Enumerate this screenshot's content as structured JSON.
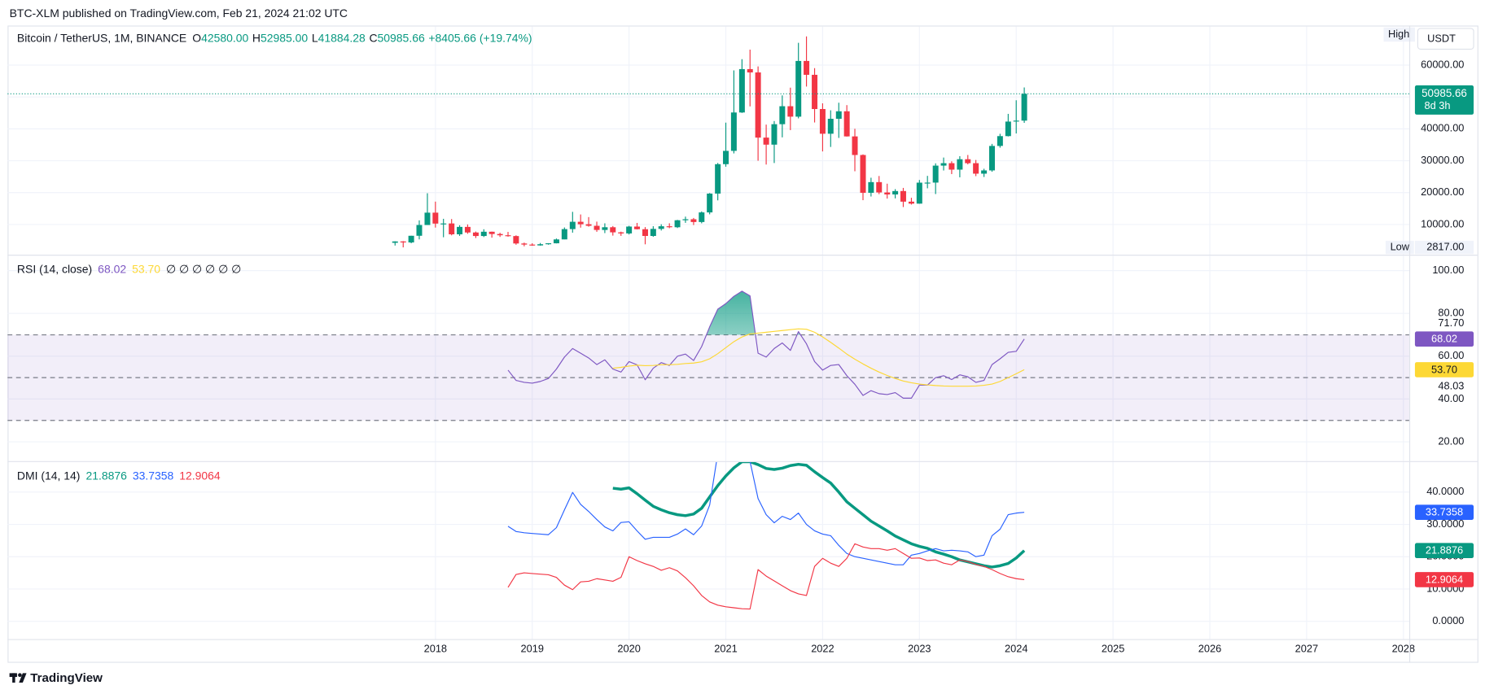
{
  "header": {
    "text": "BTC-XLM published on TradingView.com, Feb 21, 2024 21:02 UTC"
  },
  "footer": {
    "brand": "TradingView"
  },
  "chart_data": [
    {
      "type": "candlestick",
      "title": "Bitcoin / TetherUS, 1M, BINANCE",
      "ohlc_legend": [
        {
          "label": "O",
          "value": "42580.00"
        },
        {
          "label": "H",
          "value": "52985.00"
        },
        {
          "label": "L",
          "value": "41884.28"
        },
        {
          "label": "C",
          "value": "50985.66"
        }
      ],
      "change": "+8405.66 (+19.74%)",
      "currency": "USDT",
      "high_label": "High",
      "low_marker": {
        "label": "Low",
        "value": 2817,
        "value_label": "2817.00"
      },
      "last_price": {
        "value": 50985.66,
        "label": "50985.66",
        "countdown": "8d 3h"
      },
      "up_color": "#089981",
      "down_color": "#f23645",
      "xlim": [
        2013.58,
        2028.06
      ],
      "ylim": [
        530,
        72100
      ],
      "yticks": [
        {
          "value": 10000,
          "label": "10000.00"
        },
        {
          "value": 20000,
          "label": "20000.00"
        },
        {
          "value": 30000,
          "label": "30000.00"
        },
        {
          "value": 40000,
          "label": "40000.00"
        },
        {
          "value": 50000,
          "label": "50000.00"
        },
        {
          "value": 60000,
          "label": "60000.00"
        }
      ],
      "x": [
        2017.583,
        2017.667,
        2017.75,
        2017.833,
        2017.917,
        2018,
        2018.083,
        2018.167,
        2018.25,
        2018.333,
        2018.417,
        2018.5,
        2018.583,
        2018.667,
        2018.75,
        2018.833,
        2018.917,
        2019,
        2019.083,
        2019.167,
        2019.25,
        2019.333,
        2019.417,
        2019.5,
        2019.583,
        2019.667,
        2019.75,
        2019.833,
        2019.917,
        2020,
        2020.083,
        2020.167,
        2020.25,
        2020.333,
        2020.417,
        2020.5,
        2020.583,
        2020.667,
        2020.75,
        2020.833,
        2020.917,
        2021,
        2021.083,
        2021.167,
        2021.25,
        2021.333,
        2021.417,
        2021.5,
        2021.583,
        2021.667,
        2021.75,
        2021.833,
        2021.917,
        2022,
        2022.083,
        2022.167,
        2022.25,
        2022.333,
        2022.417,
        2022.5,
        2022.583,
        2022.667,
        2022.75,
        2022.833,
        2022.917,
        2023,
        2023.083,
        2023.167,
        2023.25,
        2023.333,
        2023.417,
        2023.5,
        2023.583,
        2023.667,
        2023.75,
        2023.833,
        2023.917,
        2024,
        2024.083
      ],
      "open": [
        4261.48,
        4689.89,
        4378.51,
        6463,
        9837,
        13715.65,
        10285.1,
        10326.76,
        6923.91,
        9246.01,
        7494.16,
        6391.08,
        7730.93,
        7011.21,
        6626.57,
        6371.93,
        4041.32,
        3701.23,
        3434.15,
        3813.69,
        4103.25,
        5320.81,
        8555,
        10854.1,
        10085,
        9588.74,
        8289.34,
        9140.86,
        7540.63,
        7195.23,
        9352.89,
        8523.61,
        6410.44,
        8620,
        9448.27,
        9138.08,
        11335.46,
        11649.51,
        10776.59,
        13791,
        19695.87,
        28923.63,
        33092.97,
        45134.11,
        58739.46,
        57697.25,
        37253.82,
        35045,
        41461.84,
        47100.89,
        43820.01,
        61299.81,
        56950.56,
        46216.93,
        38466.9,
        43160,
        45510.34,
        37630.8,
        31801.05,
        19942.21,
        23293.32,
        20050.02,
        19422.61,
        20490.74,
        17165.53,
        16541.77,
        23125.13,
        23141.57,
        28465.36,
        29233.21,
        27210.36,
        30472,
        29232.25,
        25940.78,
        26962.56,
        34639.38,
        37723.96,
        42283.58,
        42580
      ],
      "high": [
        4745.42,
        4789,
        6470,
        11300.03,
        19798.68,
        17176.24,
        11786.01,
        11710,
        9759.82,
        10020,
        7786.69,
        8506.99,
        7769.04,
        7410,
        7680,
        6600,
        4318.26,
        4110,
        4198,
        4140,
        5600,
        9074.26,
        13970,
        13147.08,
        12325,
        10905.87,
        10370,
        9508.98,
        7750,
        9578,
        10500,
        9188.23,
        9460,
        10067,
        10380,
        11444,
        12468,
        12050.85,
        14100,
        19863.16,
        29300,
        41950,
        58352.8,
        61844,
        64854,
        59600,
        41330,
        42448,
        50500,
        52920,
        67000,
        69000,
        59053.55,
        47990,
        45821,
        48189.84,
        47444.11,
        40023.77,
        31986.1,
        24668,
        25211.32,
        22799,
        21085,
        21480.65,
        18387.95,
        23960.54,
        25250,
        29184.68,
        31000,
        29820.5,
        31431.94,
        31804.2,
        30244,
        27483.57,
        35280,
        38450,
        44700,
        48969.48,
        52985
      ],
      "low": [
        3400,
        2817,
        4110,
        5325.01,
        10400,
        9035,
        6000.01,
        6600.1,
        6430,
        7090,
        5750,
        6070,
        5880,
        6100,
        6180,
        3652.66,
        3156.26,
        3349.92,
        3373.1,
        3670.69,
        4067,
        5350.91,
        7440,
        9010,
        9320,
        7710,
        7300,
        6515,
        6435,
        6871.04,
        8445,
        3782.13,
        6150.11,
        8117,
        8833,
        8893.03,
        10518.5,
        9825,
        10374,
        13195,
        17572.33,
        28130,
        32296.16,
        45000,
        47044.01,
        30000,
        28805,
        29278,
        37332.7,
        39600,
        43283.03,
        53256.64,
        42000.3,
        32917.17,
        34322.28,
        37155,
        37578.2,
        26700,
        17622,
        18781.34,
        19520,
        18125.98,
        18190,
        15476,
        16256.3,
        16499.01,
        21351.07,
        19549.09,
        26942.82,
        25811.46,
        24800,
        28861.9,
        25166,
        24901,
        26538.66,
        34097.39,
        37615.86,
        38555,
        41884.28
      ],
      "close": [
        4689.89,
        4378.48,
        6463,
        9838.96,
        13716.36,
        10285.1,
        10326.76,
        6923.91,
        9246.01,
        7494.16,
        6391.08,
        7730.93,
        7011.21,
        6626.57,
        6371.93,
        4041.32,
        3702.9,
        3434.1,
        3813.69,
        4103.95,
        5320.81,
        8555,
        10854.1,
        10080.53,
        9588.74,
        8289.34,
        9140.85,
        7540.63,
        7195.23,
        9352.89,
        8523.61,
        6410.44,
        8620,
        9448.27,
        9138.55,
        11335.46,
        11649.51,
        10776.59,
        13791,
        19695.87,
        28923.63,
        33092.98,
        45135.66,
        58740.55,
        57694.27,
        37253.81,
        35045,
        41461.83,
        47100.89,
        43824.43,
        61299.8,
        56950.56,
        46216.93,
        38466.9,
        43160,
        45510.34,
        37630.8,
        31801.04,
        19942.21,
        23293.32,
        20050.02,
        19422.61,
        20490.74,
        17163.64,
        16542.4,
        23125.13,
        23141.57,
        28465.36,
        29233.21,
        27210.35,
        30472,
        29232.25,
        25940.77,
        26962.56,
        34639.77,
        37723.96,
        42283.58,
        42580,
        50985.66
      ]
    },
    {
      "type": "line",
      "title": "RSI (14, close)",
      "extra": "∅ ∅ ∅ ∅ ∅ ∅",
      "xlim": [
        2013.58,
        2028.06
      ],
      "ylim": [
        11,
        107
      ],
      "yticks": [
        {
          "value": 20,
          "label": "20.00"
        },
        {
          "value": 40,
          "label": "40.00"
        },
        {
          "value": 60,
          "label": "60.00"
        },
        {
          "value": 80,
          "label": "80.00"
        },
        {
          "value": 100,
          "label": "100.00"
        }
      ],
      "bands": [
        70,
        50,
        30
      ],
      "band_color": "#7e57c2",
      "overbought_color": "#089981",
      "axis_labels": [
        {
          "value": 71.7,
          "label": "71.70"
        },
        {
          "value": 48.03,
          "label": "48.03"
        }
      ],
      "x": [
        2018.75,
        2018.833,
        2018.917,
        2019,
        2019.083,
        2019.167,
        2019.25,
        2019.333,
        2019.417,
        2019.5,
        2019.583,
        2019.667,
        2019.75,
        2019.833,
        2019.917,
        2020,
        2020.083,
        2020.167,
        2020.25,
        2020.333,
        2020.417,
        2020.5,
        2020.583,
        2020.667,
        2020.75,
        2020.833,
        2020.917,
        2021,
        2021.083,
        2021.167,
        2021.25,
        2021.333,
        2021.417,
        2021.5,
        2021.583,
        2021.667,
        2021.75,
        2021.833,
        2021.917,
        2022,
        2022.083,
        2022.167,
        2022.25,
        2022.333,
        2022.417,
        2022.5,
        2022.583,
        2022.667,
        2022.75,
        2022.833,
        2022.917,
        2023,
        2023.083,
        2023.167,
        2023.25,
        2023.333,
        2023.417,
        2023.5,
        2023.583,
        2023.667,
        2023.75,
        2023.833,
        2023.917,
        2024,
        2024.083
      ],
      "series": [
        {
          "color": "#7e57c2",
          "width": 1,
          "value_label": "68.02",
          "badge_text": "#ffffff",
          "values": [
            53.5,
            48.7,
            47.8,
            47.4,
            48.2,
            49.6,
            54,
            59.6,
            63.6,
            61.4,
            59.2,
            56.1,
            58.3,
            54,
            52.6,
            57.5,
            56,
            49,
            54.4,
            57,
            55.7,
            60,
            61,
            58,
            64.5,
            73.7,
            82,
            84.6,
            88,
            90.4,
            88.2,
            61.4,
            59.6,
            63.6,
            66.2,
            62.7,
            71.5,
            65.8,
            57.5,
            53.5,
            55.7,
            56.1,
            50.9,
            46.9,
            41.7,
            43.9,
            42.5,
            42.1,
            43,
            40.4,
            40.4,
            46.5,
            46.5,
            50,
            50.9,
            49.1,
            51.3,
            50.4,
            47.8,
            48.7,
            56.1,
            58.8,
            61.8,
            62.3,
            68.02
          ]
        },
        {
          "color": "#fdd835",
          "width": 1,
          "value_label": "53.70",
          "badge_text": "#131722",
          "values": [
            null,
            null,
            null,
            null,
            null,
            null,
            null,
            null,
            null,
            null,
            null,
            null,
            null,
            54.4,
            54.8,
            55.4,
            55.8,
            55.6,
            55.7,
            56,
            56,
            56.2,
            56.6,
            56.8,
            57.4,
            58.8,
            61.2,
            64,
            66.8,
            69,
            70.4,
            70.8,
            71.2,
            71.6,
            72,
            72.4,
            72.8,
            72.6,
            71.2,
            69,
            66.5,
            63.8,
            61,
            58.6,
            56.4,
            54.4,
            52.6,
            51,
            49.6,
            48.4,
            47.6,
            47,
            46.6,
            46.3,
            46.1,
            46,
            46,
            46,
            46.1,
            46.4,
            47,
            48.2,
            50,
            51.8,
            53.7
          ]
        }
      ]
    },
    {
      "type": "line",
      "title": "DMI (14, 14)",
      "xlim": [
        2013.58,
        2028.06
      ],
      "xticks": [
        2018,
        2019,
        2020,
        2021,
        2022,
        2023,
        2024,
        2025,
        2026,
        2027,
        2028
      ],
      "ylim": [
        -5.5,
        49.3
      ],
      "yticks": [
        {
          "value": 0,
          "label": "0.0000"
        },
        {
          "value": 10,
          "label": "10.0000"
        },
        {
          "value": 20,
          "label": "20.0000"
        },
        {
          "value": 30,
          "label": "30.0000"
        },
        {
          "value": 40,
          "label": "40.0000"
        }
      ],
      "x": [
        2018.75,
        2018.833,
        2018.917,
        2019,
        2019.083,
        2019.167,
        2019.25,
        2019.333,
        2019.417,
        2019.5,
        2019.583,
        2019.667,
        2019.75,
        2019.833,
        2019.917,
        2020,
        2020.083,
        2020.167,
        2020.25,
        2020.333,
        2020.417,
        2020.5,
        2020.583,
        2020.667,
        2020.75,
        2020.833,
        2020.917,
        2021,
        2021.083,
        2021.167,
        2021.25,
        2021.333,
        2021.417,
        2021.5,
        2021.583,
        2021.667,
        2021.75,
        2021.833,
        2021.917,
        2022,
        2022.083,
        2022.167,
        2022.25,
        2022.333,
        2022.417,
        2022.5,
        2022.583,
        2022.667,
        2022.75,
        2022.833,
        2022.917,
        2023,
        2023.083,
        2023.167,
        2023.25,
        2023.333,
        2023.417,
        2023.5,
        2023.583,
        2023.667,
        2023.75,
        2023.833,
        2023.917,
        2024,
        2024.083
      ],
      "series": [
        {
          "color": "#089981",
          "width": 3,
          "value_label": "21.8876",
          "badge_text": "#ffffff",
          "values": [
            null,
            null,
            null,
            null,
            null,
            null,
            null,
            null,
            null,
            null,
            null,
            null,
            null,
            41.2,
            40.9,
            41.3,
            39.5,
            37.5,
            35.6,
            34.5,
            33.6,
            33,
            32.7,
            33.2,
            35,
            38.5,
            42,
            45,
            47.5,
            49.4,
            49.4,
            48.5,
            47.3,
            47,
            47.4,
            48.2,
            48.6,
            48.3,
            46.3,
            44.5,
            42.8,
            40,
            37,
            35,
            33,
            31,
            29.5,
            28,
            26.4,
            25.2,
            24,
            23.2,
            22.6,
            21.5,
            20.8,
            20,
            19,
            18.4,
            17.8,
            17.2,
            16.8,
            17.2,
            17.9,
            19.6,
            21.8876
          ]
        },
        {
          "color": "#2962ff",
          "width": 1,
          "value_label": "33.7358",
          "badge_text": "#ffffff",
          "values": [
            29.4,
            27.8,
            27.4,
            27.2,
            27,
            26.8,
            29,
            34.5,
            39.9,
            36.2,
            34,
            31.5,
            29.2,
            28,
            30.6,
            30.8,
            28,
            25.4,
            26,
            26,
            26,
            27,
            28.6,
            26.8,
            29.5,
            36,
            52,
            55,
            54,
            51,
            49.5,
            38,
            33,
            30.5,
            32.5,
            31.5,
            33.5,
            30,
            28,
            27,
            26.5,
            23.5,
            21,
            20,
            19.5,
            19,
            18.5,
            18,
            17.5,
            17.5,
            20.5,
            21,
            21.8,
            22.5,
            21.8,
            22,
            21.8,
            21.5,
            20,
            20.5,
            26.5,
            28.5,
            33,
            33.5,
            33.7358
          ]
        },
        {
          "color": "#f23645",
          "width": 1,
          "value_label": "12.9064",
          "badge_text": "#ffffff",
          "values": [
            10.5,
            14.5,
            15,
            14.8,
            14.6,
            14.4,
            13.6,
            11.2,
            9.8,
            12.2,
            12.4,
            13.2,
            12.8,
            12.4,
            13.6,
            20,
            18.8,
            17.8,
            17,
            15.8,
            16.6,
            15.6,
            13.5,
            11,
            8,
            6,
            5,
            4.5,
            4.2,
            3.9,
            3.8,
            16,
            14,
            12.5,
            11,
            9.5,
            8.5,
            8,
            17,
            19.5,
            18,
            17,
            19.5,
            24,
            23,
            22.5,
            22.5,
            22,
            22.5,
            21,
            19.5,
            19.6,
            18.8,
            19,
            18,
            17.5,
            19,
            18.5,
            17.6,
            17,
            16,
            14.8,
            13.8,
            13.2,
            12.9064
          ]
        }
      ]
    }
  ]
}
